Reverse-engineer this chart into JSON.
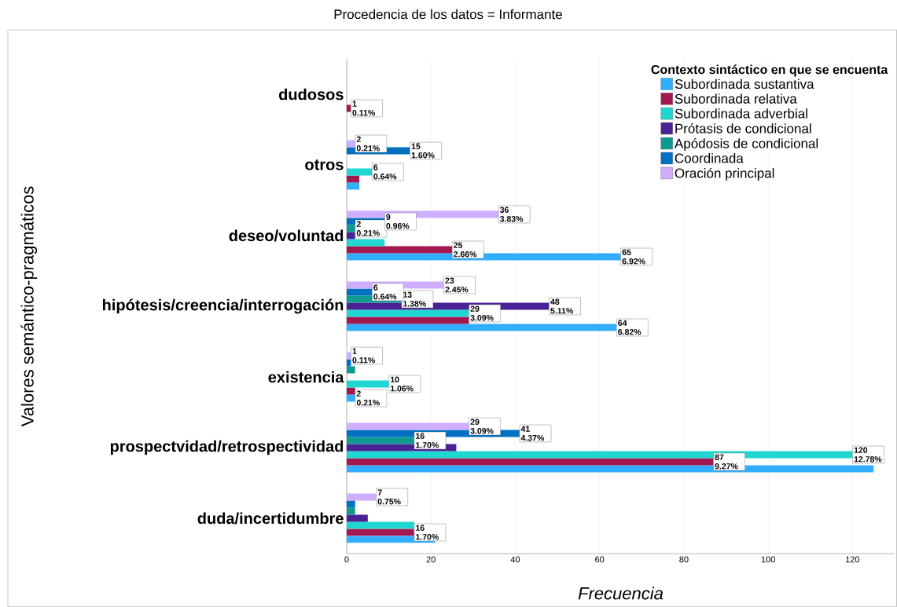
{
  "chart_data": {
    "type": "bar",
    "orientation": "horizontal",
    "title": "Procedencia de los datos = Informante",
    "xlabel": "Frecuencia",
    "ylabel": "Valores semántico-pragmáticos",
    "legend_title": "Contexto sintáctico en que se encuenta",
    "categories": [
      "dudosos",
      "otros",
      "deseo/voluntad",
      "hipótesis/creencia/interrogación",
      "existencia",
      "prospectvidad/retrospectividad",
      "duda/incertidumbre"
    ],
    "series": [
      {
        "name": "Subordinada sustantiva",
        "color": "#33adff",
        "values": [
          0,
          3,
          65,
          64,
          2,
          125,
          21
        ],
        "value_labels": [
          null,
          null,
          "65 6.92%",
          "64 6.82%",
          "2 0.21%",
          null,
          null
        ]
      },
      {
        "name": "Subordinada relativa",
        "color": "#a3174f",
        "values": [
          1,
          3,
          25,
          29,
          2,
          87,
          16
        ],
        "value_labels": [
          "1 0.11%",
          null,
          "25 2.66%",
          null,
          null,
          "87 9.27%",
          "16 1.70%"
        ]
      },
      {
        "name": "Subordinada adverbial",
        "color": "#1fd6d1",
        "values": [
          0,
          6,
          9,
          29,
          10,
          120,
          16
        ],
        "value_labels": [
          null,
          "6 0.64%",
          null,
          "29 3.09%",
          "10 1.06%",
          "120 12.78%",
          null
        ]
      },
      {
        "name": "Prótasis de condicional",
        "color": "#4b2296",
        "values": [
          0,
          0,
          2,
          48,
          0,
          26,
          5
        ],
        "value_labels": [
          null,
          null,
          null,
          "48 5.11%",
          null,
          null,
          null
        ]
      },
      {
        "name": "Apódosis de condicional",
        "color": "#0f9a91",
        "values": [
          0,
          0,
          2,
          13,
          2,
          16,
          2
        ],
        "value_labels": [
          null,
          null,
          "2 0.21%",
          "13 1.38%",
          null,
          "16 1.70%",
          null
        ]
      },
      {
        "name": "Coordinada",
        "color": "#0070c0",
        "values": [
          0,
          15,
          9,
          6,
          1,
          41,
          2
        ],
        "value_labels": [
          null,
          "15 1.60%",
          "9 0.96%",
          "6 0.64%",
          null,
          "41 4.37%",
          null
        ]
      },
      {
        "name": "Oración principal",
        "color": "#cfadff",
        "values": [
          0,
          2,
          36,
          23,
          1,
          29,
          7
        ],
        "value_labels": [
          null,
          "2 0.21%",
          "36 3.83%",
          "23 2.45%",
          "1 0.11%",
          "29 3.09%",
          "7 0.75%"
        ]
      }
    ],
    "xlim": [
      0,
      130
    ],
    "xticks": [
      0,
      20,
      40,
      60,
      80,
      100,
      120
    ],
    "grid": "x",
    "legend": "top right"
  }
}
